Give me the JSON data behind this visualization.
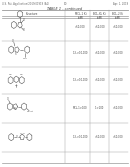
{
  "bg_color": "#ffffff",
  "header_left": "U.S. Pat. Application/2019/01919 (A1)",
  "header_center": "10",
  "header_right": "Apr. 1, 2019",
  "table_title": "TABLE 1 - continued",
  "col_headers": [
    "Structure",
    "MCL-1 Ki\n(nM)",
    "BCL-XL Ki\n(nM)",
    "BCL-2 Ki\n(nM)"
  ],
  "row_values": [
    [
      ">10,000",
      ">10,000",
      ">10,000"
    ],
    [
      "1.3->10,000",
      ">10,000",
      ">10,000"
    ],
    [
      "1.3->10,000",
      ">10,000",
      ">10,000"
    ],
    [
      "MCL-1>100",
      "1->100",
      ">10,000"
    ],
    [
      "1.3->10,000",
      ">10,000",
      ">10,000"
    ]
  ],
  "line_color": "#999999",
  "text_color": "#444444",
  "struct_color": "#555555",
  "header_text_color": "#666666"
}
